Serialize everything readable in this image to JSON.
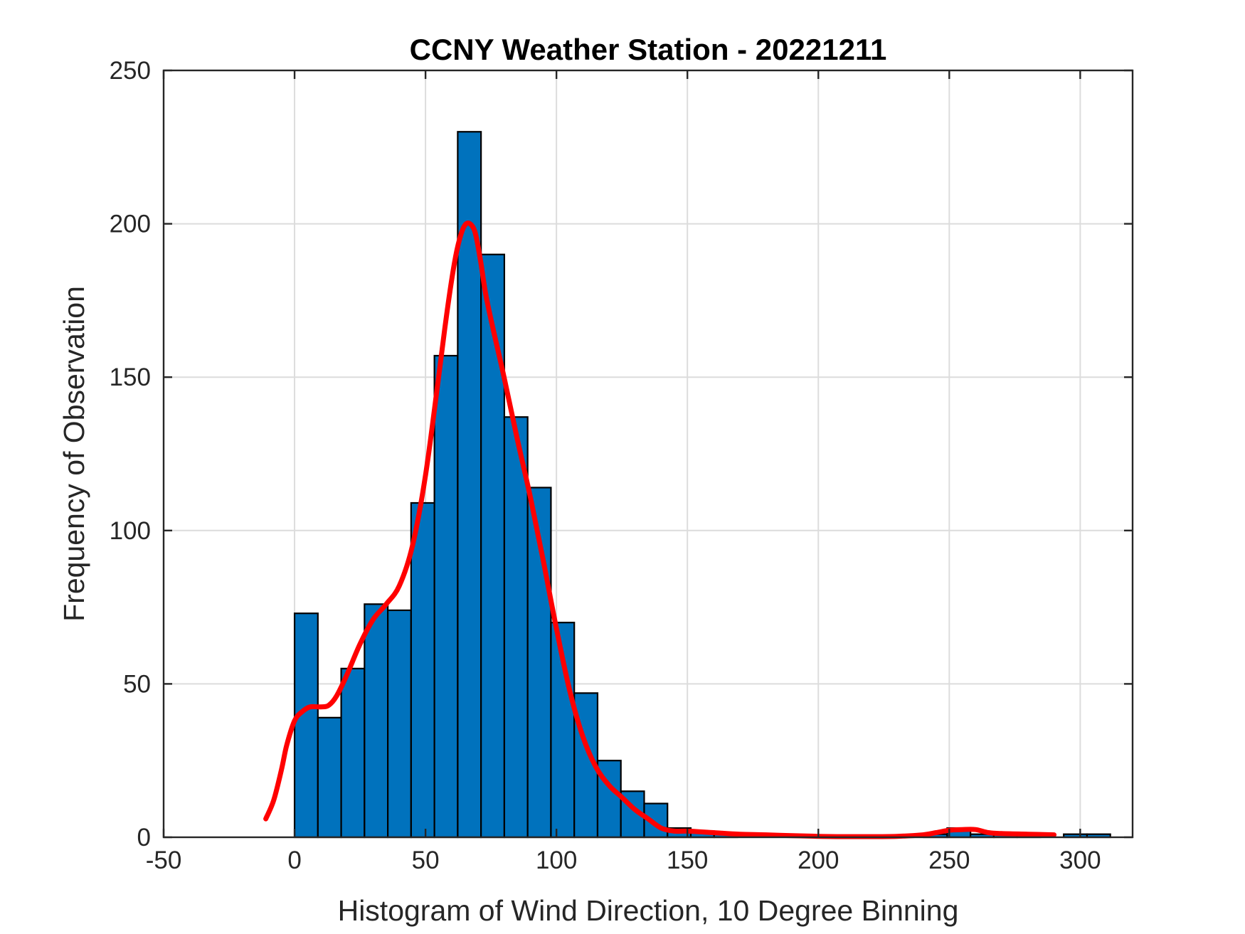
{
  "chart_data": {
    "type": "bar",
    "title": "CCNY Weather Station - 20221211",
    "xlabel": "Histogram of Wind Direction, 10 Degree Binning",
    "ylabel": "Frequency of Observation",
    "xlim": [
      -50,
      320
    ],
    "ylim": [
      0,
      250
    ],
    "xticks": [
      -50,
      0,
      50,
      100,
      150,
      200,
      250,
      300
    ],
    "yticks": [
      0,
      50,
      100,
      150,
      200,
      250
    ],
    "grid": true,
    "colors": {
      "bar_fill": "#0072BD",
      "bar_edge": "#000000",
      "fit_line": "#ff0000",
      "grid": "#dcdcdc"
    },
    "bin_width": 8.9,
    "bins": [
      {
        "start": 0.0,
        "value": 73
      },
      {
        "start": 8.9,
        "value": 39
      },
      {
        "start": 17.8,
        "value": 55
      },
      {
        "start": 26.7,
        "value": 76
      },
      {
        "start": 35.6,
        "value": 74
      },
      {
        "start": 44.5,
        "value": 109
      },
      {
        "start": 53.4,
        "value": 157
      },
      {
        "start": 62.3,
        "value": 230
      },
      {
        "start": 71.2,
        "value": 190
      },
      {
        "start": 80.1,
        "value": 137
      },
      {
        "start": 89.0,
        "value": 114
      },
      {
        "start": 97.9,
        "value": 70
      },
      {
        "start": 106.8,
        "value": 47
      },
      {
        "start": 115.7,
        "value": 25
      },
      {
        "start": 124.6,
        "value": 15
      },
      {
        "start": 133.5,
        "value": 11
      },
      {
        "start": 142.4,
        "value": 3
      },
      {
        "start": 151.3,
        "value": 2
      },
      {
        "start": 160.2,
        "value": 1
      },
      {
        "start": 169.1,
        "value": 0
      },
      {
        "start": 178.0,
        "value": 0
      },
      {
        "start": 186.9,
        "value": 0
      },
      {
        "start": 195.8,
        "value": 0
      },
      {
        "start": 204.7,
        "value": 0
      },
      {
        "start": 213.6,
        "value": 0
      },
      {
        "start": 222.5,
        "value": 0
      },
      {
        "start": 231.4,
        "value": 0
      },
      {
        "start": 240.3,
        "value": 1
      },
      {
        "start": 249.2,
        "value": 3
      },
      {
        "start": 258.1,
        "value": 1
      },
      {
        "start": 267.0,
        "value": 1
      },
      {
        "start": 275.9,
        "value": 1
      },
      {
        "start": 284.8,
        "value": 0
      },
      {
        "start": 293.7,
        "value": 1
      },
      {
        "start": 302.6,
        "value": 1
      }
    ],
    "fit_curve": {
      "name": "density fit",
      "x": [
        -11,
        -8,
        -5,
        -3,
        0,
        3,
        6,
        10,
        13,
        16,
        20,
        25,
        30,
        35,
        40,
        45,
        50,
        55,
        58,
        61,
        63,
        65,
        67,
        69,
        71,
        73,
        76,
        80,
        85,
        90,
        95,
        100,
        105,
        110,
        115,
        120,
        125,
        130,
        135,
        140,
        145,
        150,
        160,
        170,
        180,
        190,
        200,
        210,
        220,
        230,
        240,
        245,
        250,
        255,
        260,
        265,
        270,
        280,
        290
      ],
      "y": [
        6,
        12,
        22,
        30,
        38,
        41,
        42.5,
        42.5,
        43,
        46,
        53,
        63,
        71,
        76,
        82,
        95,
        118,
        150,
        170,
        187,
        195,
        199.5,
        200,
        197,
        188,
        177,
        165,
        150,
        130,
        111,
        90,
        68,
        48,
        33,
        23,
        17,
        13,
        9,
        6,
        3,
        2,
        2,
        1.5,
        1,
        0.8,
        0.5,
        0.3,
        0.2,
        0.2,
        0.3,
        0.8,
        1.5,
        2.3,
        2.5,
        2.5,
        1.5,
        1.2,
        1,
        0.8
      ]
    }
  }
}
